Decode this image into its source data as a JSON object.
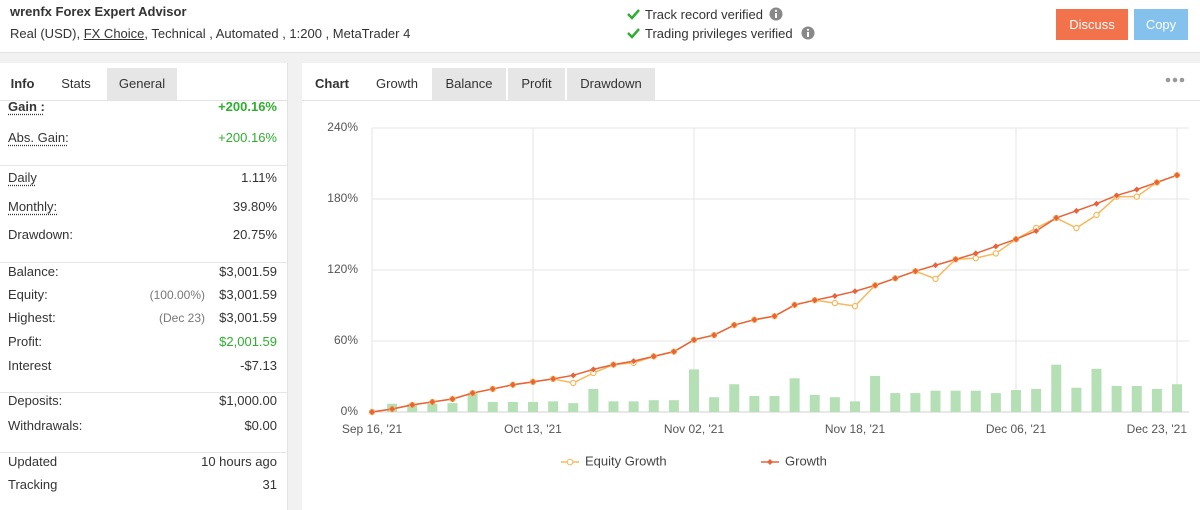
{
  "header": {
    "title": "wrenfx Forex Expert Advisor",
    "subtitle": [
      "Real (USD),",
      "FX Choice",
      ", Technical , Automated , 1:200 , MetaTrader 4"
    ],
    "verifications": [
      "Track record verified",
      "Trading privileges verified"
    ],
    "buttons": [
      "Discuss",
      "Copy"
    ]
  },
  "left_tabs": [
    "Info",
    "Stats",
    "General"
  ],
  "stats": [
    [
      {
        "label": "Gain :",
        "value": "+200.16%",
        "value_color": "#2fae2f",
        "bold": true,
        "underline": true
      },
      {
        "label": "Abs. Gain:",
        "value": "+200.16%",
        "value_color": "#2fae2f",
        "underline": true
      }
    ],
    [
      {
        "label": "Daily",
        "value": "1.11%",
        "underline": true
      },
      {
        "label": "Monthly:",
        "value": "39.80%",
        "underline": true
      },
      {
        "label": "Drawdown:",
        "value": "20.75%"
      }
    ],
    [
      {
        "label": "Balance:",
        "value": "$3,001.59"
      },
      {
        "label": "Equity:",
        "note": "(100.00%)",
        "value": "$3,001.59"
      },
      {
        "label": "Highest:",
        "note": "(Dec 23)",
        "value": "$3,001.59"
      },
      {
        "label": "Profit:",
        "value": "$2,001.59",
        "value_color": "#2fae2f"
      },
      {
        "label": "Interest",
        "value": "-$7.13"
      }
    ],
    [
      {
        "label": "Deposits:",
        "value": "$1,000.00"
      },
      {
        "label": "Withdrawals:",
        "value": "$0.00"
      }
    ],
    [
      {
        "label": "Updated",
        "value": "10 hours ago"
      },
      {
        "label": "Tracking",
        "value": "31"
      }
    ]
  ],
  "chart_tabs": [
    "Chart",
    "Growth",
    "Balance",
    "Profit",
    "Drawdown"
  ],
  "chart_data": {
    "type": "line",
    "categories": [
      "Sep 16, '21",
      null,
      null,
      null,
      null,
      null,
      null,
      null,
      "Oct 13, '21",
      null,
      null,
      null,
      null,
      null,
      null,
      null,
      "Nov 02, '21",
      null,
      null,
      null,
      null,
      null,
      null,
      null,
      "Nov 18, '21",
      null,
      null,
      null,
      null,
      null,
      null,
      null,
      "Dec 06, '21",
      null,
      null,
      null,
      null,
      null,
      null,
      null,
      "Dec 23, '21"
    ],
    "series": [
      {
        "name": "Equity Growth",
        "color": "#f5b85c",
        "marker": "circle",
        "values": [
          0,
          2.5,
          6,
          8.5,
          11,
          16,
          19.5,
          23,
          25.5,
          28,
          24.5,
          33,
          40,
          41.5,
          47,
          51,
          61,
          65,
          73.5,
          78,
          81,
          90.5,
          94.5,
          92,
          89.5,
          107,
          113,
          119,
          112.5,
          129,
          130,
          134,
          146,
          155.5,
          164,
          155.5,
          166.5,
          182,
          182,
          194,
          200.16
        ]
      },
      {
        "name": "Growth",
        "color": "#e8623a",
        "marker": "diamond",
        "values": [
          0,
          2.5,
          6,
          8.5,
          11,
          16,
          19.5,
          23,
          25.5,
          28,
          31,
          36,
          40,
          43,
          47,
          51,
          61,
          65,
          73.5,
          78,
          81,
          90.5,
          94.5,
          98,
          102,
          107,
          113,
          119,
          124,
          129,
          134,
          140,
          146,
          153,
          164,
          170,
          176,
          183,
          188,
          194,
          200.16
        ]
      }
    ],
    "bars": {
      "color": "#b5e0b5",
      "values": [
        null,
        7,
        7,
        7,
        7.5,
        16,
        8.5,
        8.5,
        8.5,
        9,
        7.5,
        19.5,
        9,
        9,
        10,
        10,
        36,
        12.5,
        23.5,
        13.5,
        13.5,
        28.5,
        14.5,
        12.5,
        9,
        30.5,
        16,
        16,
        18,
        18,
        18,
        16,
        18.5,
        19.5,
        40,
        20.5,
        36.5,
        22,
        22,
        19.5,
        23.5
      ]
    },
    "ylim": [
      0,
      240
    ],
    "yticks": [
      {
        "value": 0,
        "label": "0%"
      },
      {
        "value": 60,
        "label": "60%"
      },
      {
        "value": 120,
        "label": "120%"
      },
      {
        "value": 180,
        "label": "180%"
      },
      {
        "value": 240,
        "label": "240%"
      }
    ],
    "grid": true,
    "legend": "bottom"
  }
}
